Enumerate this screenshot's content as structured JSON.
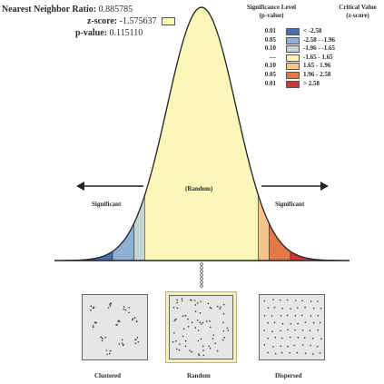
{
  "stats": {
    "nn_ratio_label": "Nearest Neighbor Ratio:",
    "nn_ratio_value": "0.885785",
    "z_label": "z-score:",
    "z_value": "-1.575637",
    "p_label": "p-value:",
    "p_value": "0.115110"
  },
  "legend": {
    "sig_header": "Significance Level",
    "sig_subheader": "(p-value)",
    "crit_header": "Critical Value",
    "crit_subheader": "(z-score)",
    "rows": [
      {
        "p": "0.01",
        "z": "< -2.58",
        "color": "#4a70a8"
      },
      {
        "p": "0.05",
        "z": "-2.58 - -1.96",
        "color": "#8eb0d2"
      },
      {
        "p": "0.10",
        "z": "-1.96 - -1.65",
        "color": "#c4d4d4"
      },
      {
        "p": "---",
        "z": "-1.65 - 1.65",
        "color": "#fbf7b8"
      },
      {
        "p": "0.10",
        "z": "1.65 - 1.96",
        "color": "#f4c48a"
      },
      {
        "p": "0.05",
        "z": "1.96 - 2.58",
        "color": "#e37848"
      },
      {
        "p": "0.01",
        "z": "> 2.58",
        "color": "#cf3838"
      }
    ]
  },
  "curve": {
    "center_label": "(Random)",
    "left_label": "Significant",
    "right_label": "Significant"
  },
  "patterns": {
    "clustered": "Clustered",
    "random": "Random",
    "dispersed": "Dispersed"
  },
  "colors": {
    "curve_fill": "#fbf7b8",
    "highlight": "#fbf7b8"
  }
}
